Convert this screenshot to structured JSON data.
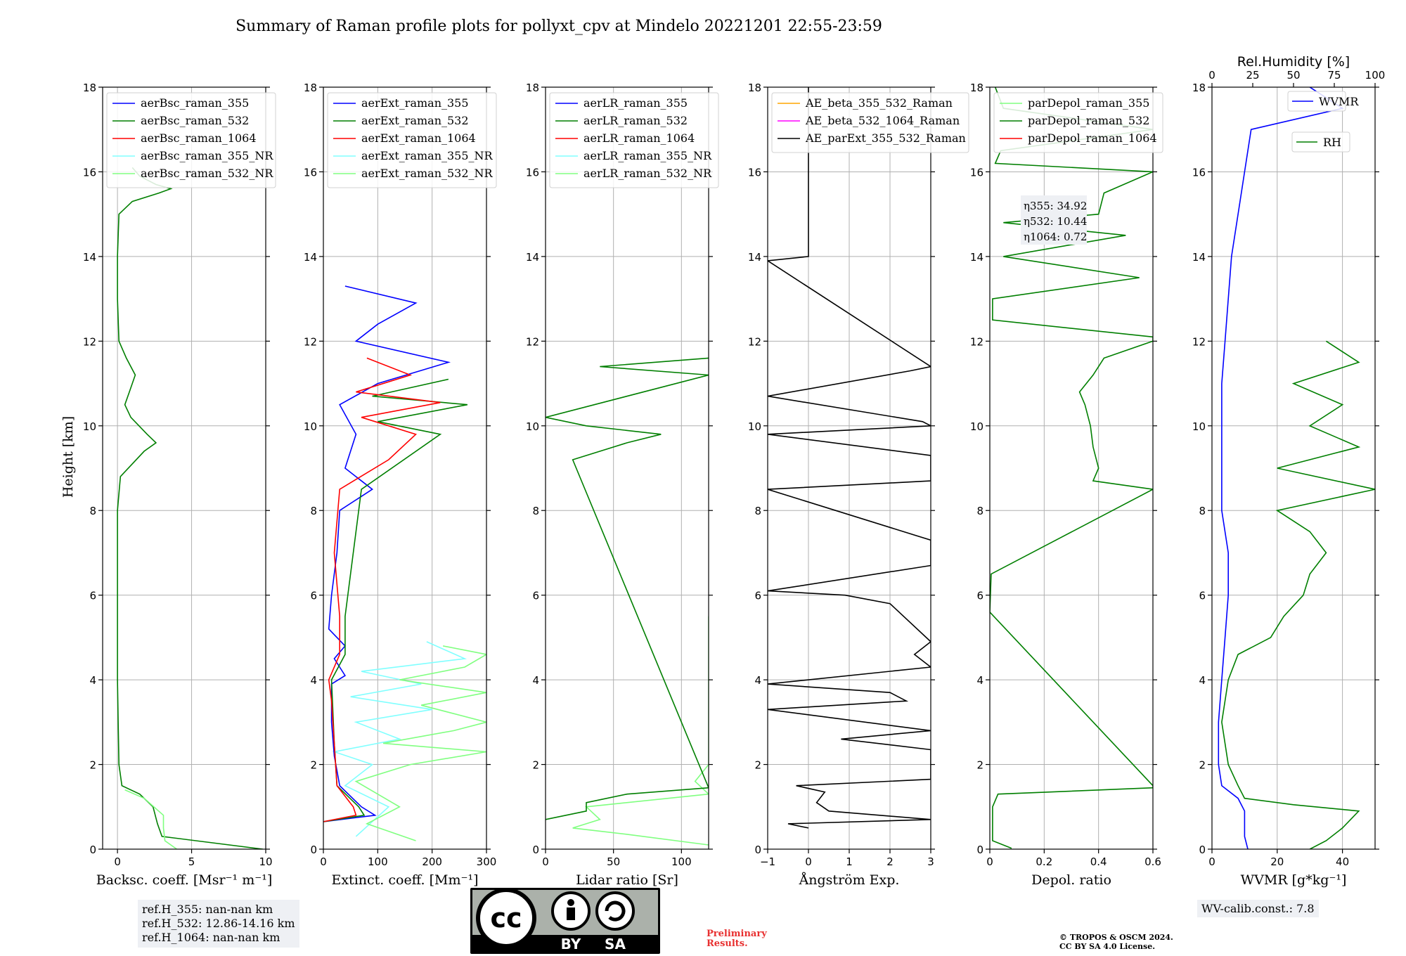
{
  "title": "Summary of Raman profile plots for pollyxt_cpv at Mindelo 20221201 22:55-23:59",
  "ylabel": "Height [km]",
  "ref_heights": [
    "ref.H_355: nan-nan km",
    "ref.H_532: 12.86-14.16 km",
    "ref.H_1064: nan-nan km"
  ],
  "wv_calib": "WV-calib.const.: 7.8",
  "prelim": [
    "Preliminary",
    "Results."
  ],
  "copyright": [
    "© TROPOS & OSCM 2024.",
    "CC BY SA 4.0 License."
  ],
  "license_badge": {
    "by": "BY",
    "sa": "SA",
    "cc": "cc"
  },
  "colors": {
    "blue": "#0000ff",
    "green": "#007f00",
    "red": "#ff0000",
    "cyan": "#80ffff",
    "lightgreen": "#80ff80",
    "orange": "#ffa500",
    "magenta": "#ff00ff",
    "black": "#000000"
  },
  "chart_data": [
    {
      "type": "line",
      "xlabel": "Backsc. coeff. [Msr⁻¹ m⁻¹]",
      "xlim": [
        -1,
        10
      ],
      "ylim": [
        0,
        18
      ],
      "xticks": [
        0,
        5,
        10
      ],
      "yticks": [
        0,
        2,
        4,
        6,
        8,
        10,
        12,
        14,
        16,
        18
      ],
      "legend": [
        "aerBsc_raman_355",
        "aerBsc_raman_532",
        "aerBsc_raman_1064",
        "aerBsc_raman_355_NR",
        "aerBsc_raman_532_NR"
      ],
      "legend_colors": [
        "blue",
        "green",
        "red",
        "cyan",
        "lightgreen"
      ],
      "series": [
        {
          "name": "aerBsc_raman_532",
          "color": "green",
          "y": [
            0,
            0.3,
            0.6,
            1.0,
            1.3,
            1.5,
            2,
            3,
            4,
            6,
            8,
            8.8,
            9.4,
            9.6,
            9.8,
            10.2,
            10.5,
            10.8,
            11.2,
            11.6,
            12,
            13,
            14,
            15,
            15.3,
            15.5,
            15.6,
            15.7,
            15.9,
            16.1
          ],
          "x": [
            9.8,
            3,
            2.7,
            2.4,
            1.5,
            0.3,
            0.1,
            0.05,
            0,
            0,
            0,
            0.2,
            1.8,
            2.6,
            2.0,
            0.9,
            0.5,
            0.8,
            1.2,
            0.6,
            0.1,
            0,
            0,
            0.1,
            1,
            2.8,
            3.6,
            2.6,
            1.5,
            1
          ]
        },
        {
          "name": "aerBsc_raman_532_NR",
          "color": "lightgreen",
          "y": [
            0,
            0.2,
            0.5,
            0.8,
            1.2,
            1.4
          ],
          "x": [
            4,
            3.2,
            3.1,
            3.1,
            1.8,
            0.5
          ]
        }
      ]
    },
    {
      "type": "line",
      "xlabel": "Extinct. coeff. [Mm⁻¹]",
      "xlim": [
        0,
        300
      ],
      "ylim": [
        0,
        18
      ],
      "xticks": [
        0,
        100,
        200,
        300
      ],
      "yticks": [
        0,
        2,
        4,
        6,
        8,
        10,
        12,
        14,
        16,
        18
      ],
      "legend": [
        "aerExt_raman_355",
        "aerExt_raman_532",
        "aerExt_raman_1064",
        "aerExt_raman_355_NR",
        "aerExt_raman_532_NR"
      ],
      "legend_colors": [
        "blue",
        "green",
        "red",
        "cyan",
        "lightgreen"
      ],
      "series": [
        {
          "name": "aerExt_raman_355_NR",
          "color": "cyan",
          "y": [
            0.3,
            1.0,
            1.5,
            2.0,
            2.3,
            2.6,
            3.0,
            3.3,
            3.6,
            3.9,
            4.2,
            4.5,
            4.9
          ],
          "x": [
            60,
            120,
            40,
            90,
            20,
            140,
            60,
            200,
            50,
            180,
            70,
            260,
            190
          ]
        },
        {
          "name": "aerExt_raman_532_NR",
          "color": "lightgreen",
          "y": [
            0.2,
            0.6,
            1.0,
            1.6,
            2.0,
            2.3,
            2.5,
            2.8,
            3.0,
            3.4,
            3.7,
            4.0,
            4.3,
            4.6,
            4.8
          ],
          "x": [
            170,
            80,
            140,
            60,
            160,
            300,
            110,
            240,
            300,
            180,
            300,
            140,
            260,
            300,
            220
          ]
        },
        {
          "name": "aerExt_raman_355",
          "color": "blue",
          "y": [
            0.65,
            0.8,
            1.0,
            1.5,
            2.2,
            3.0,
            3.9,
            4.1,
            4.5,
            4.8,
            5.2,
            6,
            7,
            8,
            8.5,
            9,
            9.8,
            10.5,
            11.0,
            11.5,
            12,
            12.4,
            12.9,
            13.3
          ],
          "x": [
            0,
            95,
            70,
            30,
            20,
            15,
            15,
            40,
            20,
            40,
            10,
            15,
            25,
            30,
            90,
            40,
            60,
            30,
            100,
            230,
            60,
            100,
            170,
            40
          ]
        },
        {
          "name": "aerExt_raman_532",
          "color": "green",
          "y": [
            0.65,
            0.8,
            1.0,
            1.5,
            2.5,
            4.0,
            4.6,
            5.5,
            8.5,
            9.8,
            10.1,
            10.5,
            10.7,
            11.1
          ],
          "x": [
            0,
            75,
            65,
            25,
            20,
            15,
            40,
            40,
            70,
            215,
            100,
            265,
            90,
            230
          ]
        },
        {
          "name": "aerExt_raman_1064",
          "color": "red",
          "y": [
            0.65,
            0.8,
            1.0,
            1.5,
            2.5,
            3.5,
            4.0,
            4.6,
            5.5,
            7,
            8.5,
            9.2,
            9.8,
            10.2,
            10.55,
            10.8,
            11.2,
            11.6
          ],
          "x": [
            0,
            60,
            55,
            25,
            20,
            15,
            10,
            30,
            30,
            20,
            30,
            120,
            170,
            70,
            215,
            60,
            160,
            80
          ]
        }
      ]
    },
    {
      "type": "line",
      "xlabel": "Lidar ratio [Sr]",
      "xlim": [
        0,
        120
      ],
      "ylim": [
        0,
        18
      ],
      "xticks": [
        0,
        50,
        100
      ],
      "yticks": [
        0,
        2,
        4,
        6,
        8,
        10,
        12,
        14,
        16,
        18
      ],
      "legend": [
        "aerLR_raman_355",
        "aerLR_raman_532",
        "aerLR_raman_1064",
        "aerLR_raman_355_NR",
        "aerLR_raman_532_NR"
      ],
      "legend_colors": [
        "blue",
        "green",
        "red",
        "cyan",
        "lightgreen"
      ],
      "series": [
        {
          "name": "aerLR_raman_532_NR",
          "color": "lightgreen",
          "y": [
            0.1,
            0.35,
            0.5,
            0.7,
            1.0,
            1.3,
            1.6,
            2.0,
            2.5,
            3.0,
            3.5,
            4.0,
            4.5,
            5.0,
            5.5
          ],
          "x": [
            120,
            60,
            20,
            40,
            30,
            120,
            110,
            120,
            120,
            120,
            120,
            120,
            120,
            120,
            120
          ]
        },
        {
          "name": "aerLR_raman_532",
          "color": "green",
          "y": [
            0.7,
            0.9,
            1.1,
            1.3,
            1.45,
            9.2,
            9.6,
            9.8,
            10.0,
            10.2,
            11.2,
            11.4,
            11.6
          ],
          "x": [
            0,
            30,
            30,
            60,
            120,
            20,
            60,
            85,
            30,
            0,
            120,
            40,
            120
          ]
        }
      ]
    },
    {
      "type": "line",
      "xlabel": "Ångström Exp.",
      "xlim": [
        -1,
        3
      ],
      "ylim": [
        0,
        18
      ],
      "xticks": [
        -1,
        0,
        1,
        2,
        3
      ],
      "yticks": [
        0,
        2,
        4,
        6,
        8,
        10,
        12,
        14,
        16,
        18
      ],
      "legend": [
        "AE_beta_355_532_Raman",
        "AE_beta_532_1064_Raman",
        "AE_parExt_355_532_Raman"
      ],
      "legend_colors": [
        "orange",
        "magenta",
        "black"
      ],
      "series": [
        {
          "name": "AE_parExt_355_532_Raman",
          "color": "black",
          "y": [
            0.5,
            0.6,
            0.7,
            0.9,
            1.1,
            1.35,
            1.5,
            1.65,
            2.35,
            2.6,
            2.8,
            3.3,
            3.5,
            3.7,
            3.9,
            4.3,
            4.6,
            4.9,
            5.8,
            6.0,
            6.1,
            6.7,
            7.3,
            8.5,
            8.7,
            9.3,
            9.8,
            10.0,
            10.1,
            10.7,
            11.3,
            11.4,
            13.9,
            14.0,
            16.0,
            18.0
          ],
          "x": [
            0,
            -0.5,
            3,
            0.5,
            0.2,
            0.4,
            -0.3,
            3,
            3,
            0.8,
            3,
            -1,
            2.4,
            2.0,
            -1,
            3,
            2.6,
            3,
            2,
            0.9,
            -1,
            3,
            3,
            -1,
            3,
            3,
            -1,
            3,
            2.8,
            -1,
            2.5,
            3,
            -1,
            0,
            0,
            0
          ]
        }
      ]
    },
    {
      "type": "line",
      "xlabel": "Depol. ratio",
      "xlim": [
        0,
        0.6
      ],
      "ylim": [
        0,
        18
      ],
      "xticks": [
        0,
        0.2,
        0.4,
        0.6
      ],
      "yticks": [
        0,
        2,
        4,
        6,
        8,
        10,
        12,
        14,
        16,
        18
      ],
      "legend": [
        "parDepol_raman_355",
        "parDepol_raman_532",
        "parDepol_raman_1064"
      ],
      "legend_colors": [
        "lightgreen",
        "green",
        "red"
      ],
      "annotation": [
        "η355: 34.92",
        "η532: 10.44",
        "η1064: 0.72"
      ],
      "series": [
        {
          "name": "parDepol_raman_532",
          "color": "green",
          "y": [
            0.02,
            0.2,
            1.0,
            1.3,
            1.45,
            1.5,
            5.6,
            6.5,
            8.5,
            8.7,
            9.0,
            9.5,
            10.0,
            10.5,
            10.8,
            11.2,
            11.6,
            12.0,
            12.1,
            12.5,
            13.0,
            13.5,
            14.0,
            14.5,
            14.8,
            15.0,
            15.5,
            16.0,
            16.2,
            16.5,
            17.0,
            17.5,
            18.0
          ],
          "x": [
            0.08,
            0.01,
            0.01,
            0.03,
            0.6,
            0.6,
            0,
            0.005,
            0.6,
            0.38,
            0.4,
            0.38,
            0.37,
            0.35,
            0.33,
            0.38,
            0.42,
            0.6,
            0.6,
            0.01,
            0.01,
            0.55,
            0.05,
            0.5,
            0.05,
            0.4,
            0.42,
            0.6,
            0.02,
            0.04,
            0.6,
            0.05,
            0.02
          ]
        }
      ]
    },
    {
      "type": "line",
      "xlabel": "WVMR [g*kg⁻¹]",
      "xlim": [
        0,
        50
      ],
      "ylim": [
        0,
        18
      ],
      "xticks": [
        0,
        20,
        40
      ],
      "yticks": [
        0,
        2,
        4,
        6,
        8,
        10,
        12,
        14,
        16,
        18
      ],
      "top_axis": {
        "label": "Rel.Humidity [%]",
        "ticks": [
          0,
          25,
          50,
          75,
          100
        ]
      },
      "legend": [
        "WVMR",
        "RH"
      ],
      "legend_colors": [
        "blue",
        "green"
      ],
      "series": [
        {
          "name": "WVMR",
          "color": "blue",
          "y": [
            0,
            0.3,
            0.6,
            0.9,
            1.2,
            1.5,
            2.0,
            3.0,
            4.0,
            5.0,
            6.0,
            7.0,
            8.0,
            9.0,
            10.0,
            11.0,
            12.0,
            13.0,
            14.0,
            15.0,
            16.0,
            17.0,
            17.5,
            18.0
          ],
          "x": [
            11,
            10,
            10,
            10,
            8,
            3,
            2,
            2,
            3,
            4,
            5,
            5,
            3,
            3,
            3,
            3,
            4,
            5,
            6,
            8,
            10,
            12,
            40,
            30
          ]
        },
        {
          "name": "RH",
          "color": "green",
          "y": [
            0,
            0.2,
            0.5,
            0.9,
            1.05,
            1.2,
            1.5,
            2.0,
            3.0,
            4.0,
            4.6,
            5.0,
            5.5,
            6.0,
            6.5,
            7.0,
            7.5,
            8.0,
            8.5,
            9.0,
            9.5,
            10.0,
            10.5,
            11.0,
            11.5,
            12.0
          ],
          "x": [
            30,
            35,
            40,
            45,
            25,
            10,
            8,
            5,
            3,
            5,
            8,
            18,
            22,
            28,
            30,
            35,
            30,
            20,
            50,
            20,
            45,
            30,
            40,
            25,
            45,
            35
          ]
        }
      ]
    }
  ]
}
